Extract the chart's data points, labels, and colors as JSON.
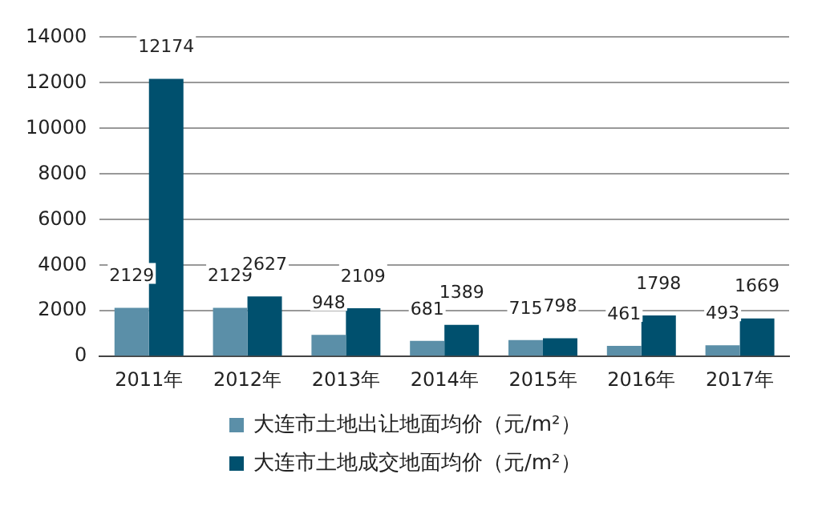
{
  "chart_data": {
    "type": "bar",
    "categories": [
      "2011年",
      "2012年",
      "2013年",
      "2014年",
      "2015年",
      "2016年",
      "2017年"
    ],
    "series": [
      {
        "name": "大连市土地出让地面均价（元/m²）",
        "color": "#5b8fa8",
        "values": [
          2129,
          2129,
          948,
          681,
          715,
          461,
          493
        ]
      },
      {
        "name": "大连市土地成交地面均价（元/m²）",
        "color": "#00506e",
        "values": [
          12174,
          2627,
          2109,
          1389,
          798,
          1798,
          1669
        ]
      }
    ],
    "ylim": [
      0,
      14000
    ],
    "yticks": [
      0,
      2000,
      4000,
      6000,
      8000,
      10000,
      12000,
      14000
    ],
    "grid": "y",
    "legend": "bottom",
    "data_labels": true
  }
}
